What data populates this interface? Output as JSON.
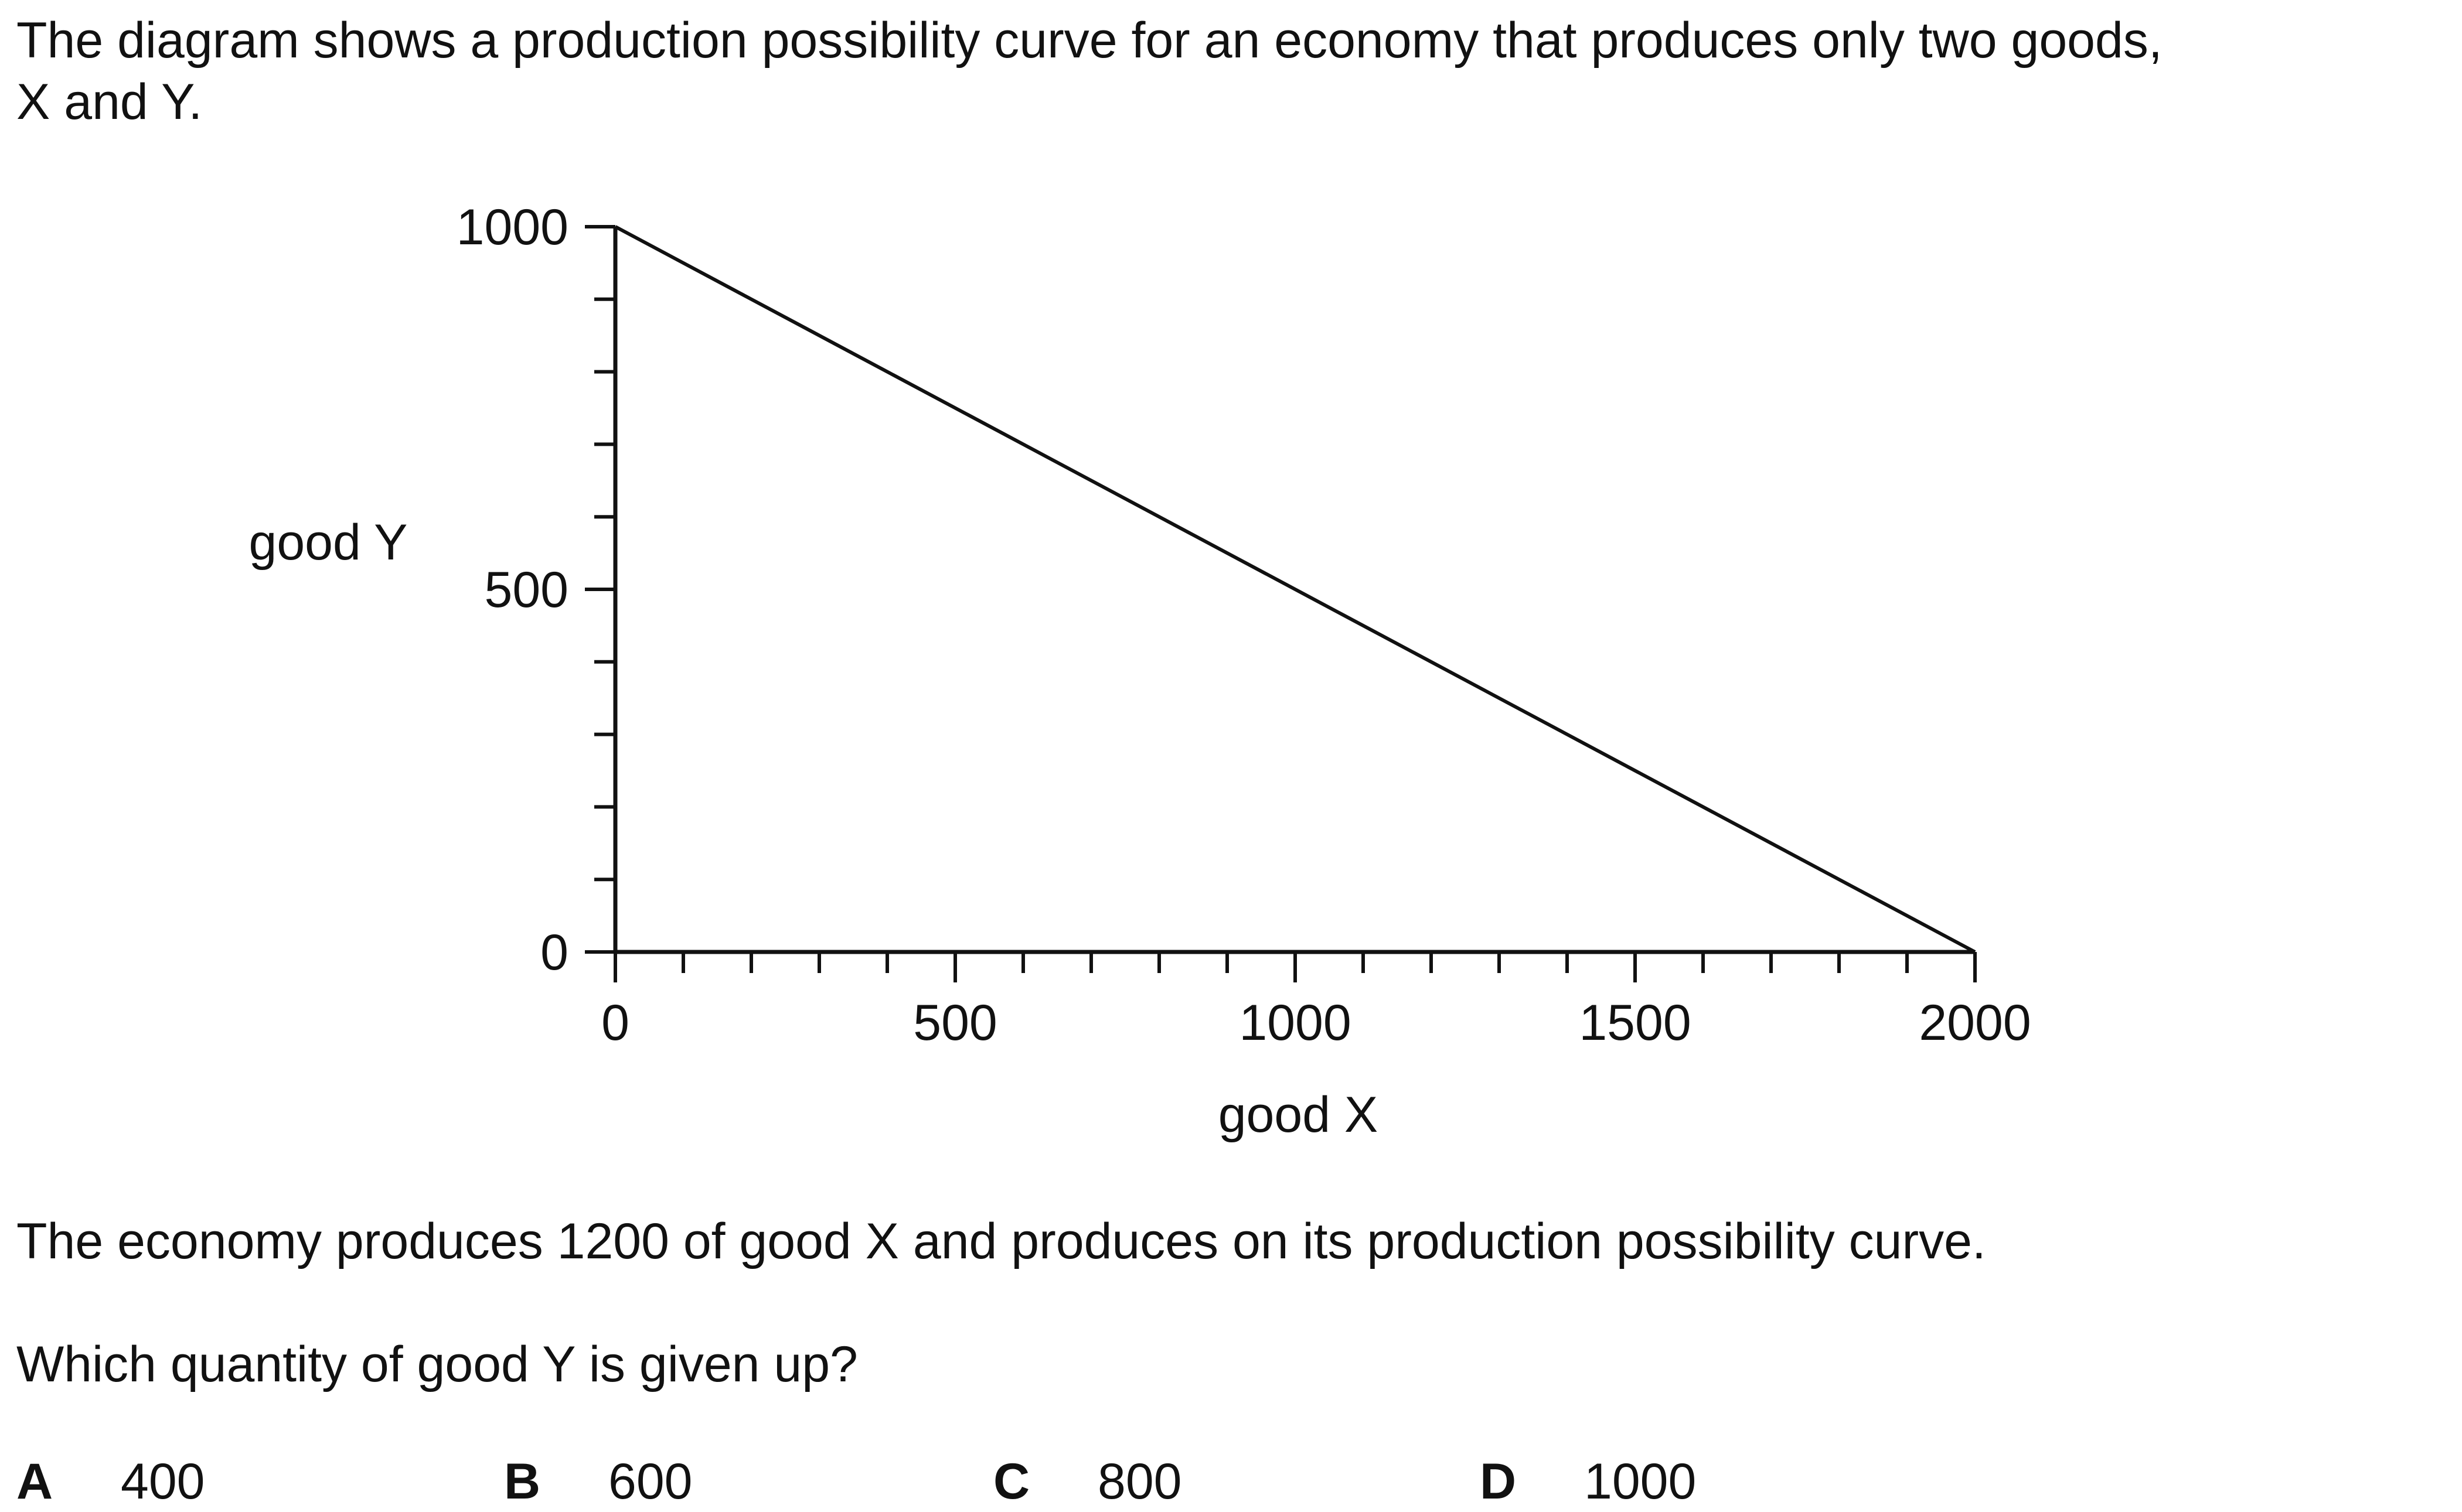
{
  "question": {
    "intro_line1": "The diagram shows a production possibility curve for an economy that produces only two goods,",
    "intro_line2": "X and Y.",
    "statement": "The economy produces 1200 of good X and produces on its production possibility curve.",
    "prompt": "Which quantity of good Y is given up?",
    "options": [
      {
        "letter": "A",
        "value": "400"
      },
      {
        "letter": "B",
        "value": "600"
      },
      {
        "letter": "C",
        "value": "800"
      },
      {
        "letter": "D",
        "value": "1000"
      }
    ]
  },
  "chart_data": {
    "type": "line",
    "title": "",
    "xlabel": "good X",
    "ylabel": "good Y",
    "xlim": [
      0,
      2000
    ],
    "ylim": [
      0,
      1000
    ],
    "x_ticks": [
      0,
      500,
      1000,
      1500,
      2000
    ],
    "y_ticks": [
      0,
      500,
      1000
    ],
    "x_minor_step": 100,
    "y_minor_step": 100,
    "grid": false,
    "legend": "none",
    "line_color": "#111111",
    "series": [
      {
        "x": [
          0,
          2000
        ],
        "y": [
          1000,
          0
        ]
      }
    ]
  }
}
